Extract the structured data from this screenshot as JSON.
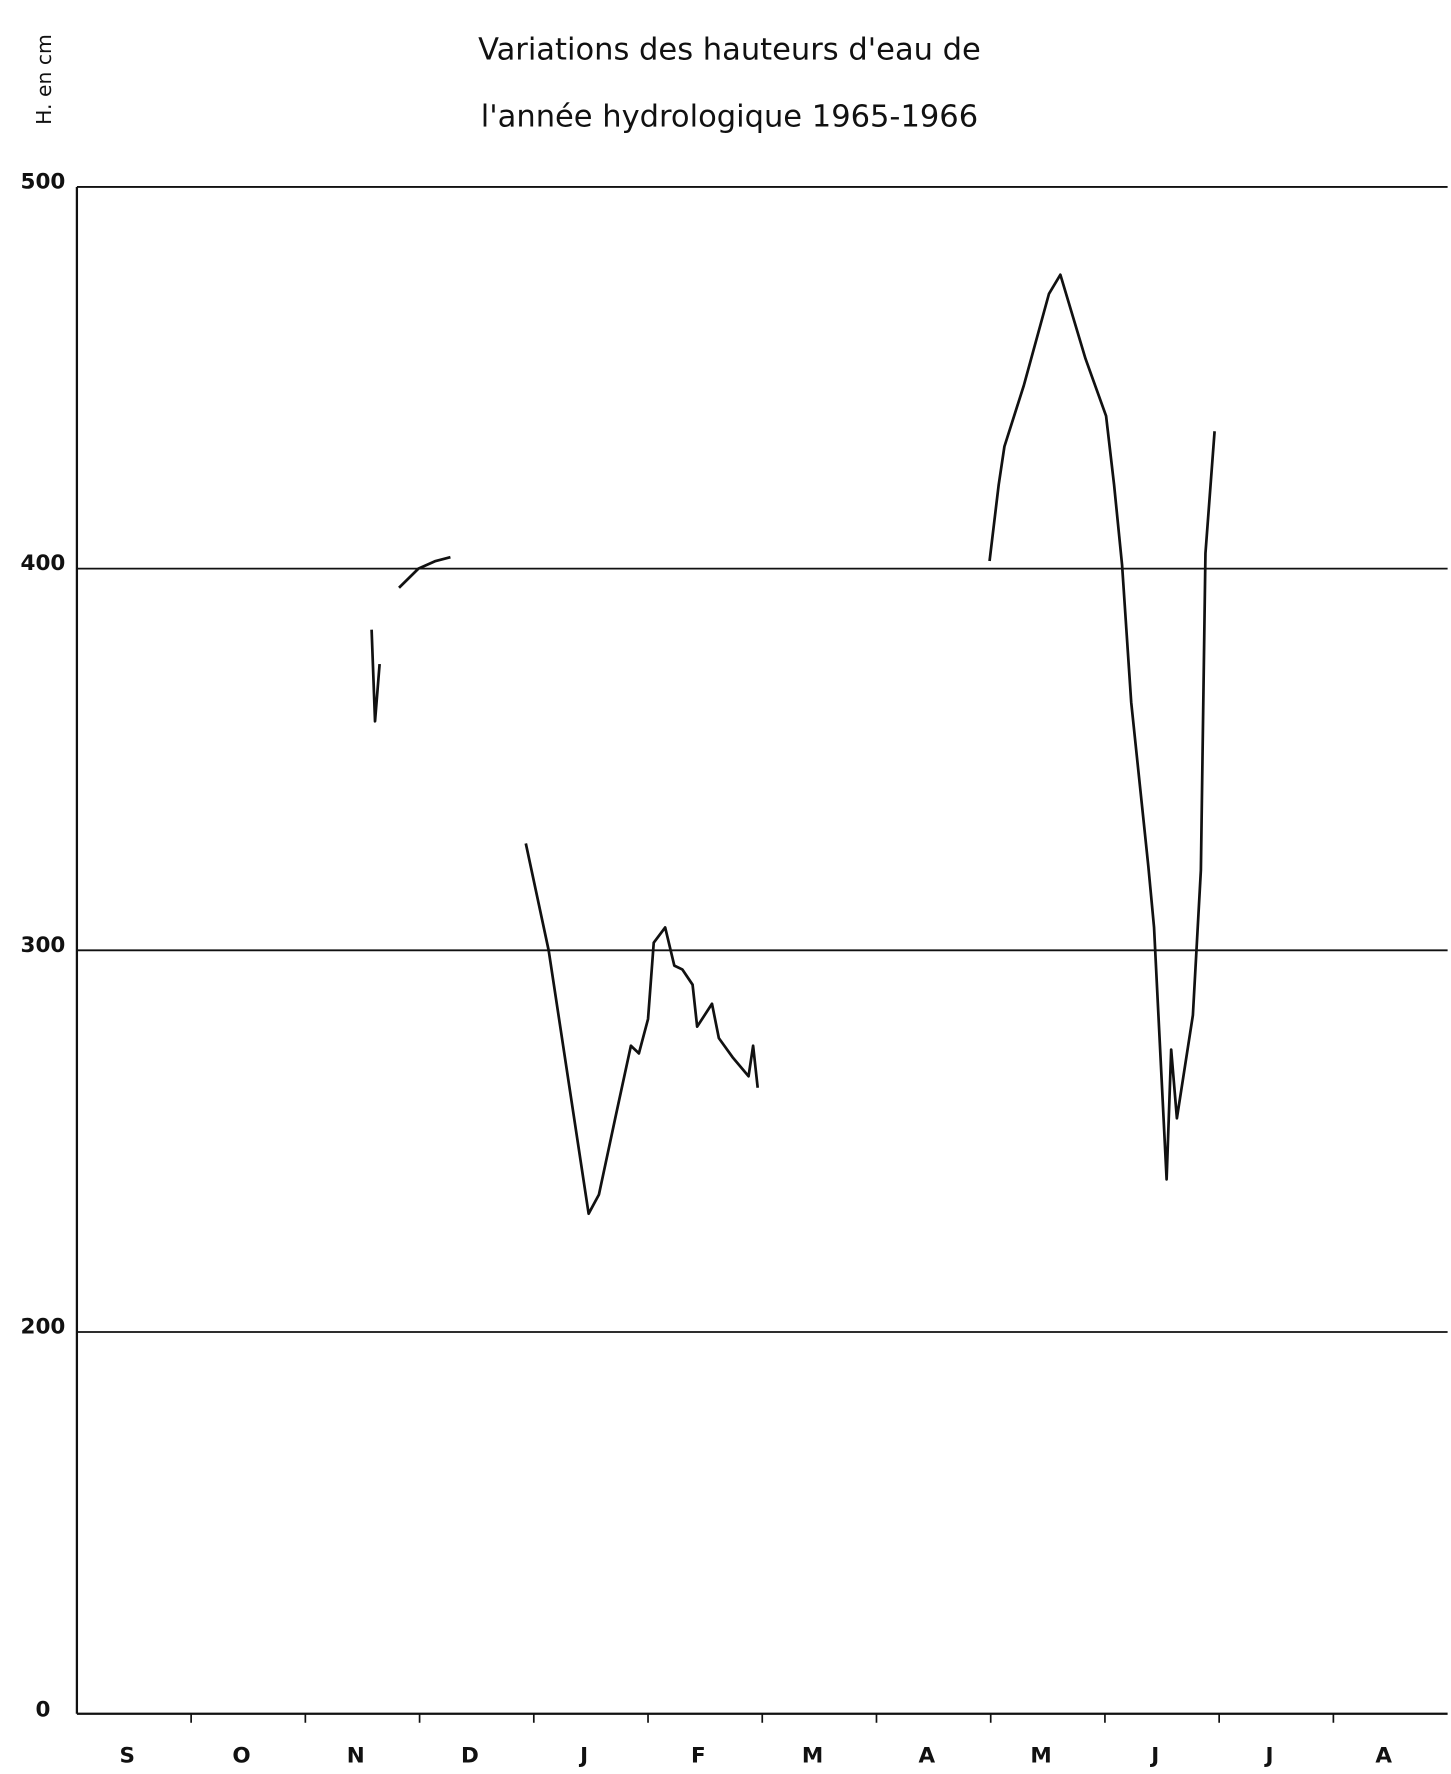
{
  "chart_data": {
    "type": "line",
    "title": "Variations des hauteurs d'eau de",
    "subtitle": "l'année hydrologique 1965-1966",
    "y_label": "H. en cm",
    "y_origin_label": "0",
    "categories": [
      "S",
      "O",
      "N",
      "D",
      "J",
      "F",
      "M",
      "A",
      "M",
      "J",
      "J",
      "A"
    ],
    "xlim": [
      0,
      12
    ],
    "ylim": [
      100,
      500
    ],
    "yticks": [
      200,
      300,
      400,
      500
    ],
    "grid": true,
    "series": [
      {
        "name": "H",
        "color": "#111111",
        "x": [
          2.58,
          2.61,
          2.65,
          null,
          2.82,
          2.99,
          3.14,
          3.27,
          null,
          3.93,
          4.13,
          4.48,
          4.57,
          4.72,
          4.85,
          4.92,
          5.0,
          5.05,
          5.15,
          5.23,
          5.3,
          5.39,
          5.43,
          5.56,
          5.62,
          5.74,
          5.88,
          5.92,
          5.96,
          null,
          7.99,
          8.07,
          8.12,
          8.29,
          8.51,
          8.61,
          8.83,
          9.01,
          9.08,
          9.15,
          9.23,
          9.38,
          9.43,
          9.54,
          9.58,
          9.63,
          9.77,
          9.84,
          9.88,
          9.96
        ],
        "values": [
          384,
          360,
          375,
          null,
          395,
          400,
          402,
          403,
          null,
          328,
          300,
          231,
          236,
          257,
          275,
          273,
          282,
          302,
          306,
          296,
          295,
          291,
          280,
          286,
          277,
          272,
          267,
          275,
          264,
          null,
          402,
          422,
          432,
          448,
          472,
          477,
          455,
          440,
          422,
          401,
          365,
          322,
          306,
          240,
          274,
          256,
          283,
          321,
          404,
          436
        ]
      }
    ]
  }
}
